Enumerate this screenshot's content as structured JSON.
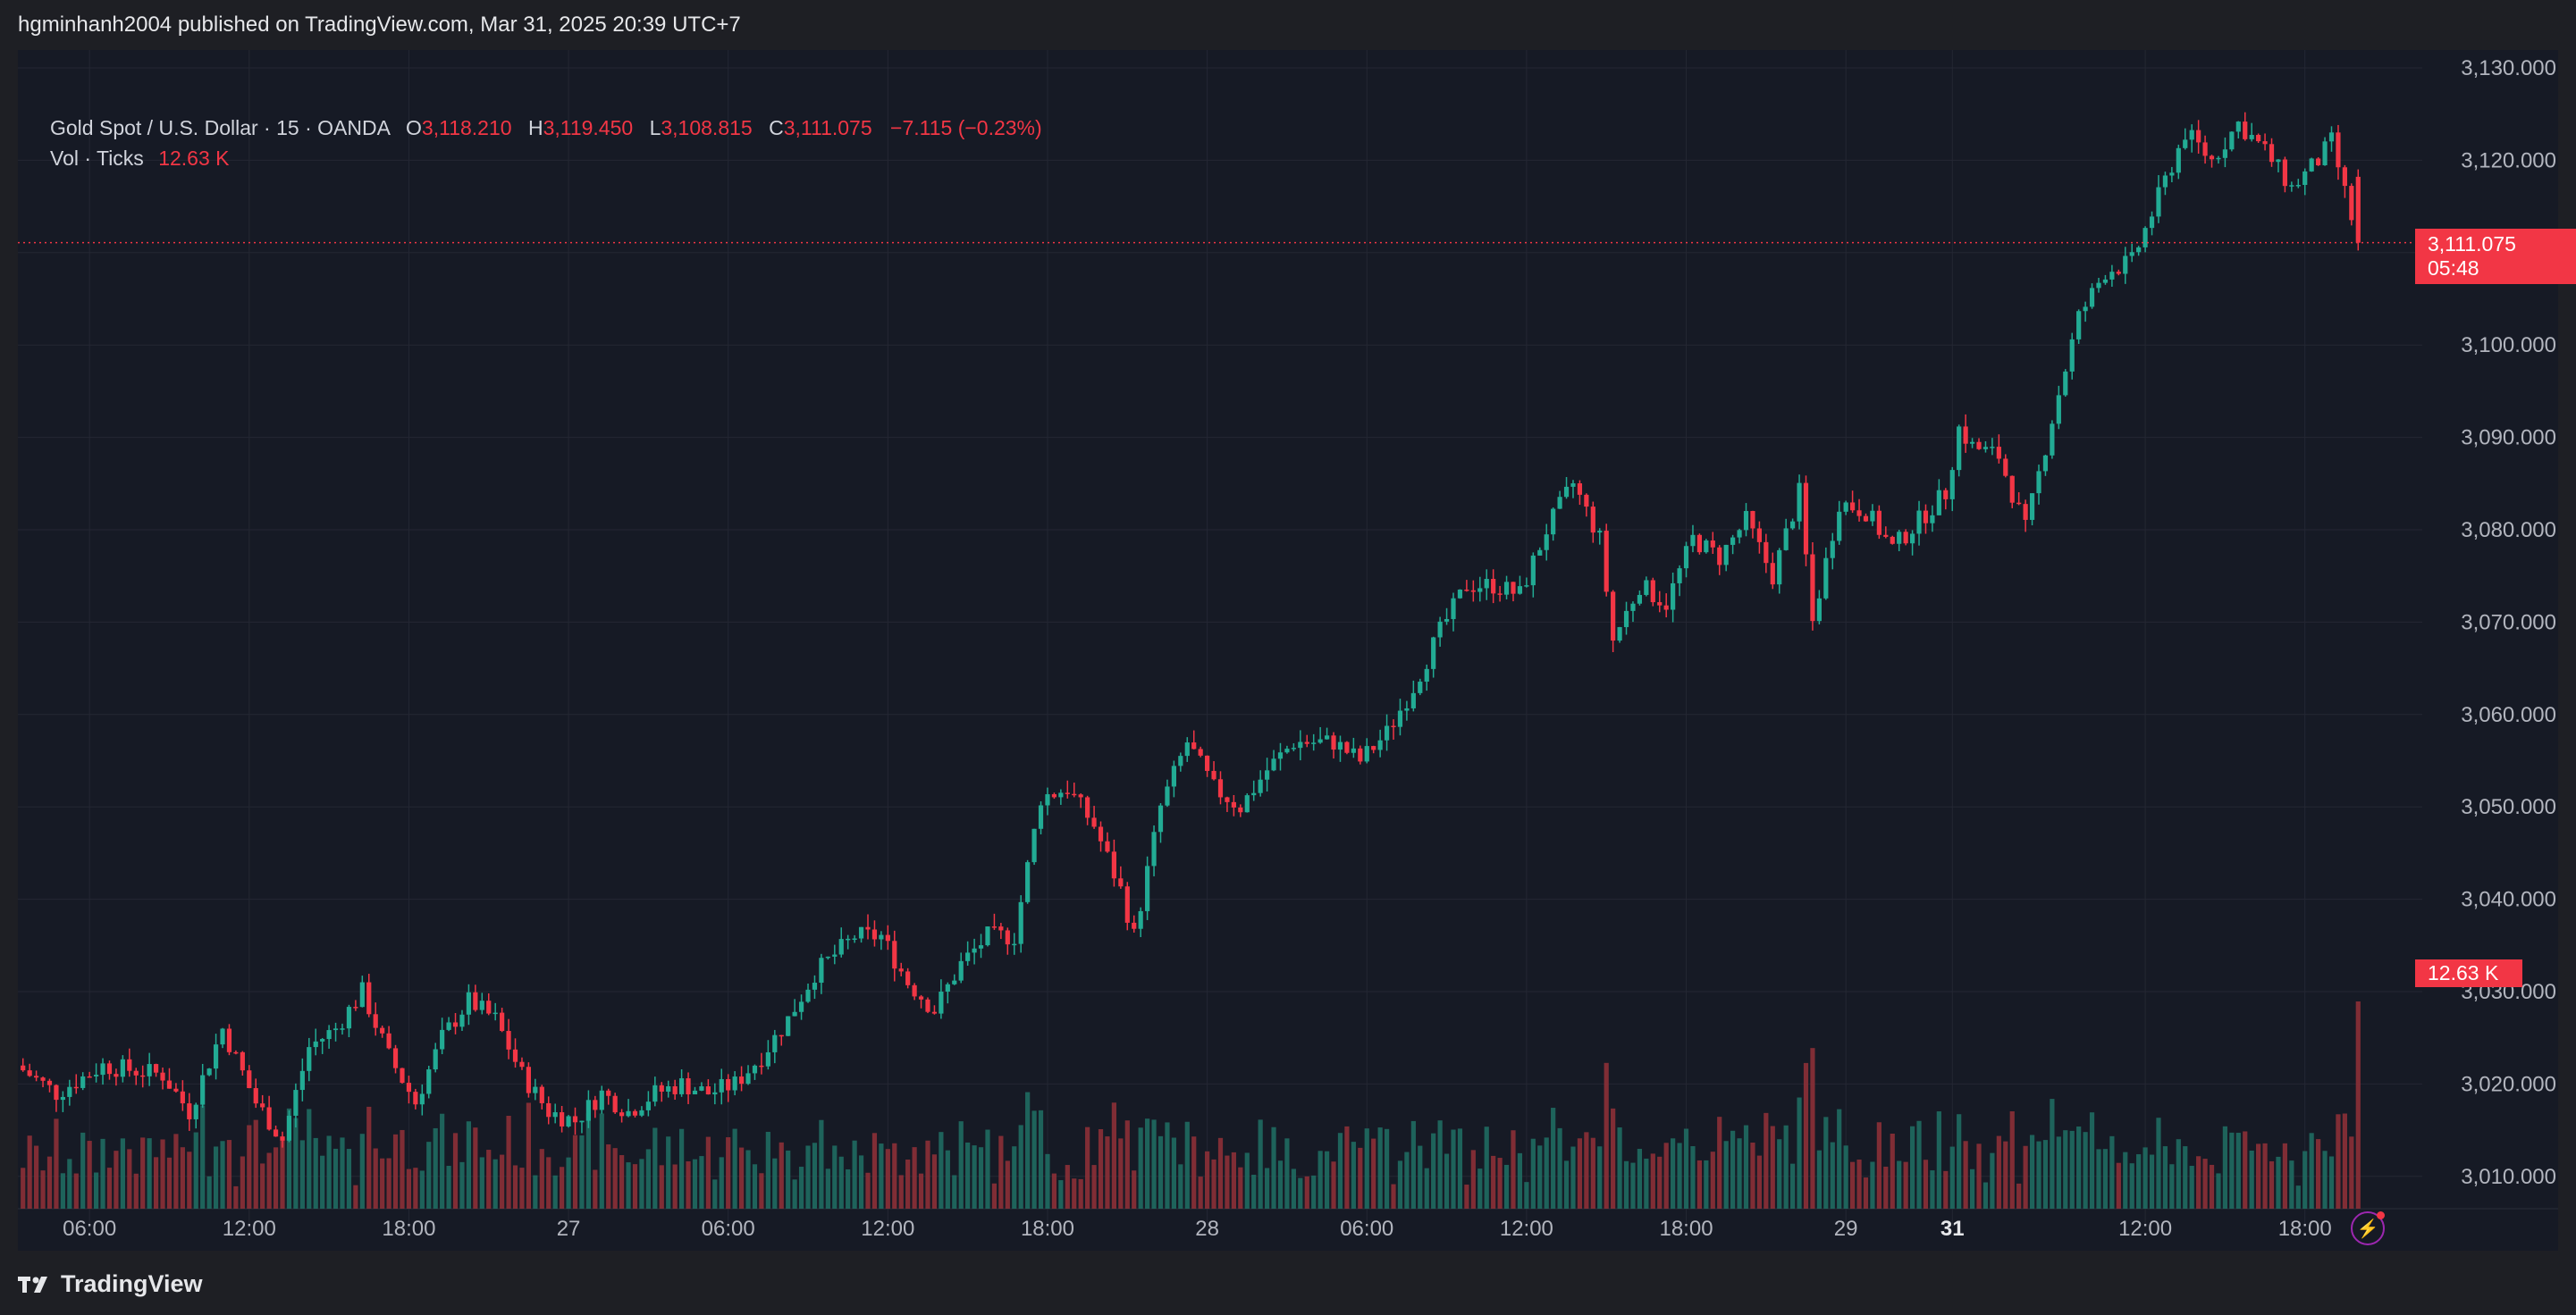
{
  "attribution": "hgminhanh2004 published on TradingView.com, Mar 31, 2025 20:39 UTC+7",
  "legend": {
    "symbol": "Gold Spot / U.S. Dollar · 15 · OANDA",
    "open_label": "O",
    "open": "3,118.210",
    "high_label": "H",
    "high": "3,119.450",
    "low_label": "L",
    "low": "3,108.815",
    "close_label": "C",
    "close": "3,111.075",
    "change": "−7.115 (−0.23%)",
    "volume_label": "Vol · Ticks",
    "volume": "12.63 K"
  },
  "price_tag": {
    "price": "3,111.075",
    "countdown": "05:48"
  },
  "volume_tag": "12.63 K",
  "footer": {
    "brand": "TradingView"
  },
  "colors": {
    "up": "#22ab94",
    "down": "#f23645",
    "background": "#161a25",
    "grid": "#242733"
  },
  "chart_data": {
    "type": "candlestick",
    "instrument": "Gold Spot / U.S. Dollar",
    "interval": "15",
    "y_axis": {
      "ticks": [
        "3,130.000",
        "3,120.000",
        "3,110.000",
        "3,100.000",
        "3,090.000",
        "3,080.000",
        "3,070.000",
        "3,060.000",
        "3,050.000",
        "3,040.000",
        "3,030.000",
        "3,020.000",
        "3,010.000"
      ],
      "ylim": [
        3009,
        3131
      ]
    },
    "x_axis": {
      "ticks": [
        {
          "label": "06:00",
          "index": 10
        },
        {
          "label": "12:00",
          "index": 34
        },
        {
          "label": "18:00",
          "index": 58
        },
        {
          "label": "27",
          "index": 82,
          "bold": false
        },
        {
          "label": "06:00",
          "index": 106
        },
        {
          "label": "12:00",
          "index": 130
        },
        {
          "label": "18:00",
          "index": 154
        },
        {
          "label": "28",
          "index": 178
        },
        {
          "label": "06:00",
          "index": 202
        },
        {
          "label": "12:00",
          "index": 226
        },
        {
          "label": "18:00",
          "index": 250
        },
        {
          "label": "29",
          "index": 274
        },
        {
          "label": "31",
          "index": 290,
          "bold": true
        },
        {
          "label": "12:00",
          "index": 319
        },
        {
          "label": "18:00",
          "index": 343
        }
      ],
      "total_slots": 352
    },
    "last_price": 3111.075,
    "anchors": [
      [
        0,
        3022
      ],
      [
        6,
        3019
      ],
      [
        13,
        3022
      ],
      [
        22,
        3021
      ],
      [
        26,
        3017
      ],
      [
        31,
        3026
      ],
      [
        36,
        3018
      ],
      [
        40,
        3014
      ],
      [
        44,
        3024
      ],
      [
        48,
        3026
      ],
      [
        52,
        3030
      ],
      [
        56,
        3023
      ],
      [
        60,
        3018
      ],
      [
        64,
        3025
      ],
      [
        68,
        3029
      ],
      [
        72,
        3027
      ],
      [
        76,
        3021
      ],
      [
        80,
        3017
      ],
      [
        84,
        3016
      ],
      [
        88,
        3019
      ],
      [
        92,
        3017
      ],
      [
        96,
        3019
      ],
      [
        100,
        3020
      ],
      [
        104,
        3019
      ],
      [
        108,
        3020
      ],
      [
        112,
        3023
      ],
      [
        116,
        3027
      ],
      [
        120,
        3032
      ],
      [
        126,
        3036
      ],
      [
        130,
        3036
      ],
      [
        134,
        3031
      ],
      [
        138,
        3028
      ],
      [
        142,
        3033
      ],
      [
        146,
        3036
      ],
      [
        150,
        3036
      ],
      [
        154,
        3051
      ],
      [
        158,
        3052
      ],
      [
        162,
        3048
      ],
      [
        166,
        3041
      ],
      [
        168,
        3036
      ],
      [
        172,
        3050
      ],
      [
        176,
        3057
      ],
      [
        180,
        3052
      ],
      [
        184,
        3050
      ],
      [
        188,
        3054
      ],
      [
        192,
        3057
      ],
      [
        198,
        3057
      ],
      [
        202,
        3055
      ],
      [
        206,
        3058
      ],
      [
        210,
        3063
      ],
      [
        214,
        3069
      ],
      [
        218,
        3074
      ],
      [
        222,
        3074
      ],
      [
        226,
        3073
      ],
      [
        230,
        3080
      ],
      [
        234,
        3085
      ],
      [
        238,
        3079
      ],
      [
        240,
        3068
      ],
      [
        244,
        3074
      ],
      [
        248,
        3072
      ],
      [
        252,
        3079
      ],
      [
        256,
        3077
      ],
      [
        260,
        3081
      ],
      [
        264,
        3075
      ],
      [
        268,
        3084
      ],
      [
        270,
        3070
      ],
      [
        274,
        3083
      ],
      [
        278,
        3082
      ],
      [
        282,
        3078
      ],
      [
        286,
        3081
      ],
      [
        290,
        3084
      ],
      [
        292,
        3091
      ],
      [
        294,
        3089
      ],
      [
        298,
        3088
      ],
      [
        302,
        3080
      ],
      [
        306,
        3092
      ],
      [
        310,
        3103
      ],
      [
        314,
        3108
      ],
      [
        318,
        3109
      ],
      [
        322,
        3116
      ],
      [
        326,
        3123
      ],
      [
        330,
        3120
      ],
      [
        334,
        3124
      ],
      [
        338,
        3121
      ],
      [
        342,
        3117
      ],
      [
        346,
        3120
      ],
      [
        348,
        3122
      ],
      [
        352,
        3111
      ]
    ],
    "volume_scale_max": 12.63,
    "volume_unit": "K",
    "last_volume": 12.63
  }
}
